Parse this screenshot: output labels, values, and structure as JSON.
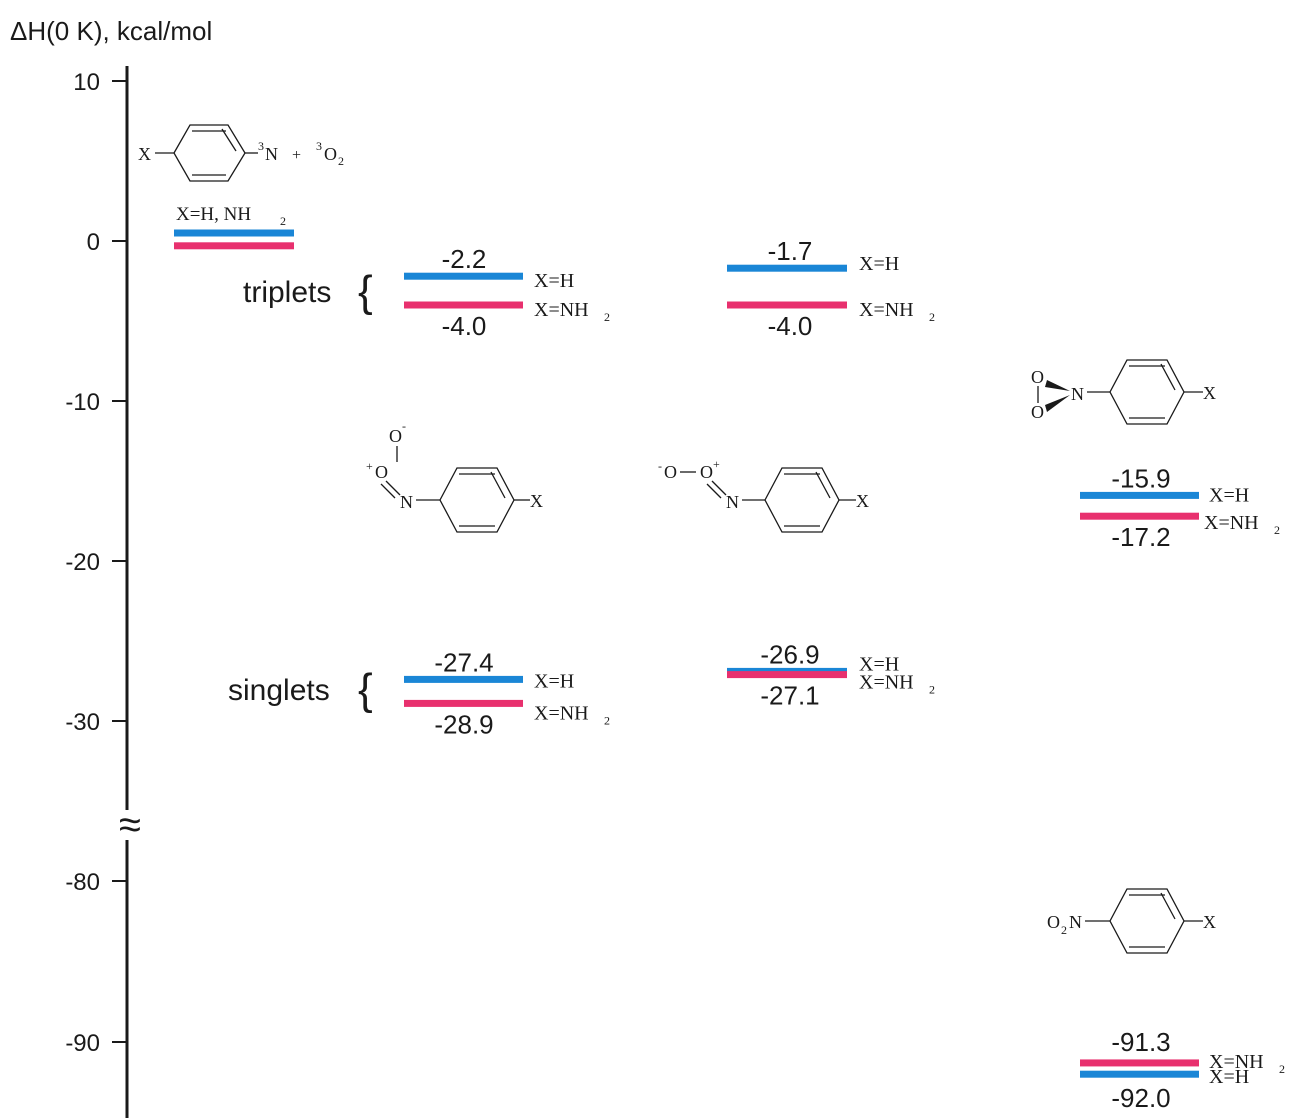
{
  "axis": {
    "label": "ΔH(0 K), kcal/mol",
    "ticks": [
      {
        "value": 10,
        "label": "10"
      },
      {
        "value": 0,
        "label": "0"
      },
      {
        "value": -10,
        "label": "-10"
      },
      {
        "value": -20,
        "label": "-20"
      },
      {
        "value": -30,
        "label": "-30"
      },
      {
        "value": -80,
        "label": "-80"
      },
      {
        "value": -90,
        "label": "-90"
      }
    ],
    "break_symbol": "≈"
  },
  "colors": {
    "x_h": "#1a86d6",
    "x_nh2": "#e8306e"
  },
  "reactants": {
    "x": "X",
    "n": "N",
    "n_sup": "3",
    "plus": "+",
    "o": "O",
    "o_sup": "3",
    "o_sub": "2",
    "label_main": "X=H, NH",
    "label_sub": "2"
  },
  "groups": {
    "triplets": "triplets",
    "singlets": "singlets",
    "brace": "{"
  },
  "levels": {
    "reactants": {
      "h": 0.5,
      "nh2": -0.3
    },
    "trip1": {
      "h": "-2.2",
      "nh2": "-4.0"
    },
    "trip2": {
      "h": "-1.7",
      "nh2": "-4.0"
    },
    "sing1": {
      "h": "-27.4",
      "nh2": "-28.9"
    },
    "sing2": {
      "h": "-26.9",
      "nh2": "-27.1"
    },
    "dioxaziridine": {
      "h": "-15.9",
      "nh2": "-17.2"
    },
    "nitro": {
      "h": "-92.0",
      "nh2": "-91.3"
    }
  },
  "x_labels": {
    "h": "X=H",
    "nh2_main": "X=NH",
    "nh2_sub": "2"
  },
  "mol_peroxy1": {
    "o_top": "O",
    "o_top_sup": "-",
    "o_mid": "O",
    "o_mid_sup": "+",
    "n": "N",
    "x": "X"
  },
  "mol_peroxy2": {
    "o1": "O",
    "o1_sup": "-",
    "o2": "O",
    "o2_sup": "+",
    "n": "N",
    "x": "X"
  },
  "mol_dioxaziridine": {
    "o1": "O",
    "o2": "O",
    "n": "N",
    "x": "X"
  },
  "mol_nitro": {
    "o": "O",
    "sub": "2",
    "n": "N",
    "x": "X"
  }
}
